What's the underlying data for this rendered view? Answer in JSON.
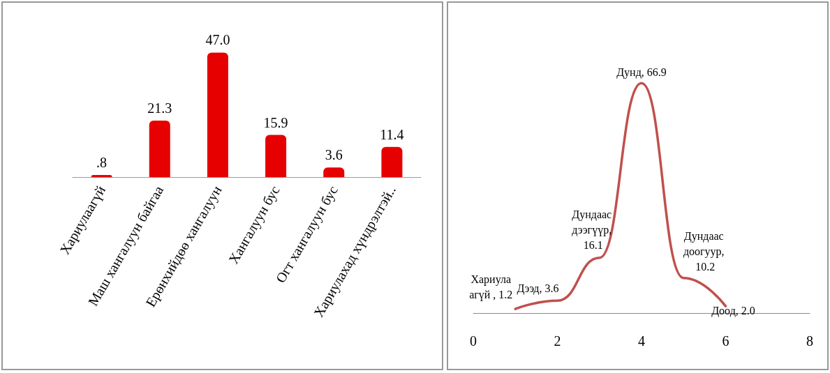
{
  "chart_data": [
    {
      "type": "bar",
      "categories": [
        "Хариулаагүй",
        "Маш хангалуун байгаа",
        "Ерөнхийдөө хангалуун",
        "Хангалуун бус",
        "Огт хангалуун бус",
        "Хариулахад хүндрэлтэй.."
      ],
      "values": [
        0.8,
        21.3,
        47.0,
        15.9,
        3.6,
        11.4
      ],
      "value_labels": [
        ".8",
        "21.3",
        "47.0",
        "15.9",
        "3.6",
        "11.4"
      ],
      "color": "#e60000"
    },
    {
      "type": "line",
      "x": [
        1,
        2,
        3,
        4,
        5,
        6
      ],
      "series": [
        {
          "color": "#c0504d",
          "values": [
            1.2,
            3.6,
            16.1,
            66.9,
            10.2,
            2.0
          ],
          "value_labels": [
            "Хариулаагүй , 1.2",
            "Дээд, 3.6",
            "Дундаас дээгүүр, 16.1",
            "Дунд, 66.9",
            "Дундаас доогуур, 10.2",
            "Доод, 2.0"
          ]
        }
      ],
      "xlim": [
        0,
        8
      ],
      "xticks": [
        0,
        2,
        4,
        6,
        8
      ],
      "marker": "none",
      "tick_labels": "x"
    }
  ]
}
